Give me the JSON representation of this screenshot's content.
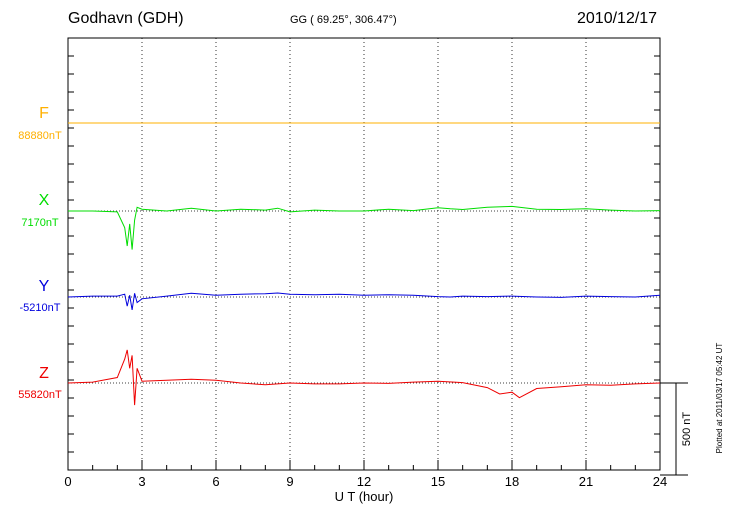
{
  "header": {
    "station": "Godhavn (GDH)",
    "coords": "GG ( 69.25°, 306.47°)",
    "date": "2010/12/17"
  },
  "footer_note": "Plotted at 2011/03/17 05:42 UT",
  "chart_data": {
    "type": "line",
    "title": "Godhavn (GDH)",
    "xlabel": "U T (hour)",
    "xlim": [
      0,
      24
    ],
    "xticks": [
      "0",
      "3",
      "6",
      "9",
      "12",
      "15",
      "18",
      "21",
      "24"
    ],
    "grid": true,
    "scale_bar_label": "500 nT",
    "scale_bar_nT": 500,
    "units": "nT",
    "series": [
      {
        "name": "F",
        "baseline_label": "88880nT",
        "color": "#ffb000",
        "x": [
          0,
          3,
          6,
          9,
          12,
          15,
          18,
          21,
          24
        ],
        "y": [
          88880,
          88880,
          88880,
          88880,
          88880,
          88880,
          88880,
          88880,
          88880
        ]
      },
      {
        "name": "X",
        "baseline_label": "7170nT",
        "color": "#00dd00",
        "x": [
          0,
          1,
          2,
          2.3,
          2.4,
          2.5,
          2.6,
          2.7,
          2.8,
          3,
          4,
          5,
          6,
          7,
          8,
          8.5,
          9,
          10,
          11,
          12,
          13,
          14,
          15,
          15.5,
          16,
          17,
          18,
          19,
          20,
          21,
          22,
          23,
          24
        ],
        "y": [
          7170,
          7170,
          7165,
          7080,
          6980,
          7100,
          6960,
          7120,
          7190,
          7180,
          7170,
          7185,
          7170,
          7180,
          7175,
          7185,
          7165,
          7175,
          7170,
          7170,
          7180,
          7172,
          7188,
          7182,
          7178,
          7190,
          7195,
          7180,
          7178,
          7182,
          7175,
          7170,
          7172
        ]
      },
      {
        "name": "Y",
        "baseline_label": "-5210nT",
        "color": "#0000dd",
        "x": [
          0,
          1,
          2,
          2.3,
          2.4,
          2.5,
          2.6,
          2.7,
          2.8,
          3,
          4,
          5,
          6,
          7,
          8,
          8.5,
          9,
          10,
          11,
          12,
          13,
          14,
          15,
          15.5,
          16,
          17,
          18,
          19,
          20,
          21,
          22,
          23,
          24
        ],
        "y": [
          -5210,
          -5205,
          -5205,
          -5195,
          -5260,
          -5200,
          -5280,
          -5190,
          -5240,
          -5220,
          -5205,
          -5190,
          -5200,
          -5195,
          -5192,
          -5188,
          -5195,
          -5198,
          -5195,
          -5200,
          -5198,
          -5200,
          -5208,
          -5210,
          -5205,
          -5208,
          -5205,
          -5210,
          -5212,
          -5205,
          -5208,
          -5210,
          -5200
        ]
      },
      {
        "name": "Z",
        "baseline_label": "55820nT",
        "color": "#ee0000",
        "x": [
          0,
          1,
          2,
          2.3,
          2.4,
          2.5,
          2.6,
          2.7,
          2.8,
          3,
          4,
          5,
          6,
          7,
          8,
          9,
          10,
          11,
          12,
          13,
          14,
          15,
          16,
          17,
          17.5,
          18,
          18.3,
          19,
          20,
          21,
          22,
          23,
          24
        ],
        "y": [
          55820,
          55825,
          55850,
          55950,
          56000,
          55900,
          55970,
          55700,
          55900,
          55830,
          55835,
          55840,
          55835,
          55820,
          55810,
          55820,
          55815,
          55815,
          55820,
          55818,
          55825,
          55830,
          55822,
          55795,
          55760,
          55770,
          55740,
          55790,
          55800,
          55810,
          55808,
          55815,
          55820
        ]
      }
    ]
  }
}
